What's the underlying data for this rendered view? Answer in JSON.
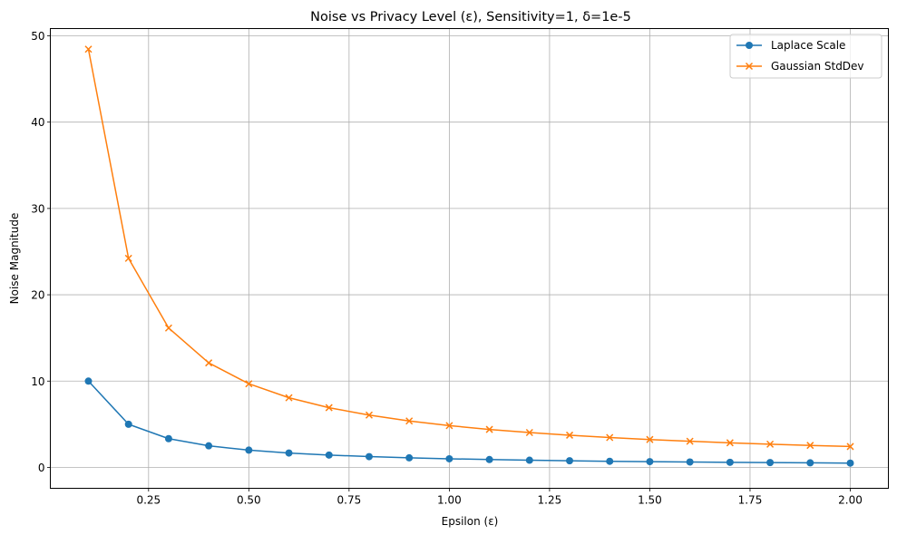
{
  "chart_data": {
    "type": "line",
    "title": "Noise vs Privacy Level (ε), Sensitivity=1, δ=1e-5",
    "xlabel": "Epsilon (ε)",
    "ylabel": "Noise Magnitude",
    "xlim": [
      0.005,
      2.095
    ],
    "ylim": [
      -2.42,
      50.84
    ],
    "xticks": [
      "0.25",
      "0.50",
      "0.75",
      "1.00",
      "1.25",
      "1.50",
      "1.75",
      "2.00"
    ],
    "yticks": [
      "0",
      "10",
      "20",
      "30",
      "40",
      "50"
    ],
    "grid": true,
    "legend_position": "top-right",
    "x": [
      0.1,
      0.2,
      0.3,
      0.4,
      0.5,
      0.6,
      0.7,
      0.8,
      0.9,
      1.0,
      1.1,
      1.2,
      1.3,
      1.4,
      1.5,
      1.6,
      1.7,
      1.8,
      1.9,
      2.0
    ],
    "series": [
      {
        "name": "Laplace Scale",
        "color": "#1f77b4",
        "marker": "circle",
        "values": [
          10.0,
          5.0,
          3.33,
          2.5,
          2.0,
          1.67,
          1.43,
          1.25,
          1.11,
          1.0,
          0.91,
          0.83,
          0.77,
          0.71,
          0.67,
          0.63,
          0.59,
          0.56,
          0.53,
          0.5
        ]
      },
      {
        "name": "Gaussian StdDev",
        "color": "#ff7f0e",
        "marker": "x",
        "values": [
          48.45,
          24.22,
          16.15,
          12.11,
          9.69,
          8.07,
          6.92,
          6.06,
          5.38,
          4.84,
          4.4,
          4.04,
          3.73,
          3.46,
          3.23,
          3.03,
          2.85,
          2.69,
          2.55,
          2.42
        ]
      }
    ]
  }
}
